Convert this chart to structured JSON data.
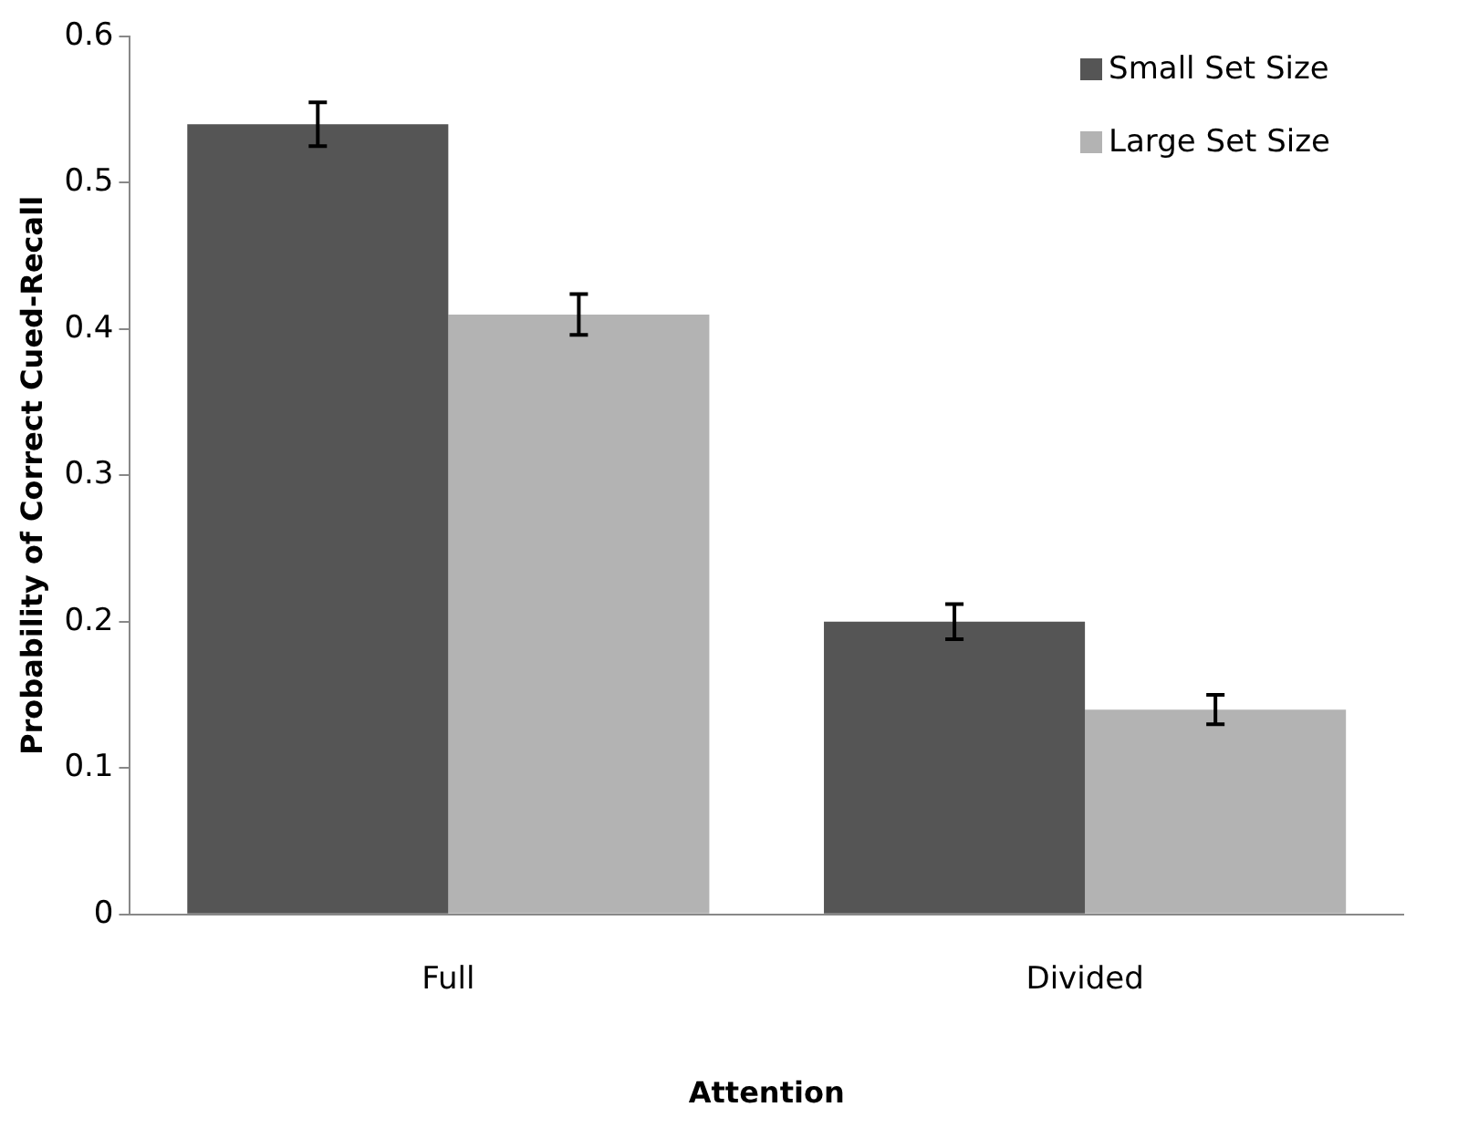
{
  "chart_data": {
    "type": "bar",
    "xlabel": "Attention",
    "ylabel": "Probability of Correct Cued-Recall",
    "categories": [
      "Full",
      "Divided"
    ],
    "series": [
      {
        "name": "Small Set Size",
        "color": "#555555",
        "values": [
          0.54,
          0.2
        ],
        "errors": [
          0.015,
          0.012
        ]
      },
      {
        "name": "Large Set Size",
        "color": "#b3b3b3",
        "values": [
          0.41,
          0.14
        ],
        "errors": [
          0.014,
          0.01
        ]
      }
    ],
    "ylim": [
      0,
      0.6
    ],
    "yticks": [
      0,
      0.1,
      0.2,
      0.3,
      0.4,
      0.5,
      0.6
    ],
    "grid": false,
    "legend": "top right"
  }
}
